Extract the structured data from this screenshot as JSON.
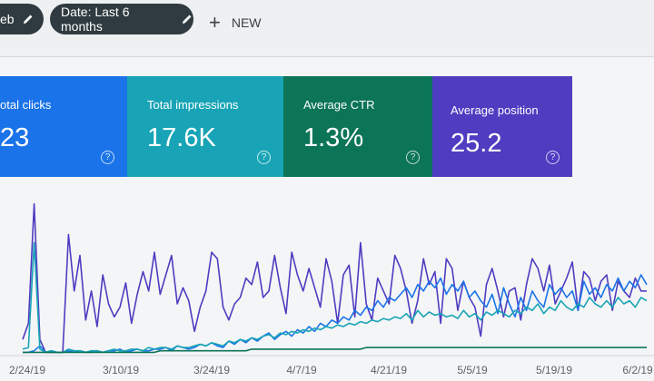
{
  "toolbar": {
    "search_type_chip": "eb",
    "date_chip": "Date: Last 6 months",
    "new_label": "NEW"
  },
  "metrics": [
    {
      "label": "otal clicks",
      "value": "23",
      "color": "#1a73e8"
    },
    {
      "label": "Total impressions",
      "value": "17.6K",
      "color": "#18a4b6"
    },
    {
      "label": "Average CTR",
      "value": "1.3%",
      "color": "#0c7457"
    },
    {
      "label": "Average position",
      "value": "25.2",
      "color": "#4e3cc1"
    }
  ],
  "chart_data": {
    "type": "line",
    "x_ticks": [
      "2/24/19",
      "3/10/19",
      "3/24/19",
      "4/7/19",
      "4/21/19",
      "5/5/19",
      "5/19/19",
      "6/2/19"
    ],
    "series": [
      {
        "color": "#4e3cc1",
        "values": [
          10,
          20,
          94,
          10,
          2,
          2,
          2,
          2,
          75,
          40,
          62,
          22,
          40,
          18,
          50,
          32,
          24,
          30,
          45,
          20,
          38,
          52,
          40,
          64,
          38,
          50,
          62,
          32,
          42,
          34,
          15,
          30,
          40,
          64,
          60,
          30,
          22,
          32,
          36,
          48,
          44,
          58,
          36,
          40,
          62,
          42,
          26,
          64,
          50,
          40,
          54,
          42,
          30,
          60,
          46,
          20,
          50,
          56,
          24,
          70,
          32,
          22,
          48,
          40,
          32,
          62,
          54,
          40,
          20,
          34,
          60,
          44,
          52,
          20,
          60,
          54,
          28,
          46,
          36,
          30,
          12,
          44,
          54,
          40,
          24,
          40,
          42,
          22,
          44,
          60,
          54,
          40,
          56,
          32,
          40,
          48,
          58,
          28,
          52,
          48,
          34,
          46,
          50,
          28,
          46,
          40,
          36,
          48,
          40,
          40
        ]
      },
      {
        "color": "#1a73e8",
        "values": [
          2,
          2,
          3,
          6,
          2,
          3,
          2,
          2,
          3,
          2,
          3,
          2,
          2,
          3,
          2,
          3,
          3,
          4,
          2,
          3,
          4,
          3,
          3,
          4,
          4,
          5,
          3,
          6,
          5,
          4,
          5,
          7,
          6,
          8,
          6,
          5,
          9,
          7,
          10,
          8,
          11,
          9,
          12,
          14,
          10,
          13,
          15,
          12,
          16,
          14,
          18,
          15,
          20,
          18,
          22,
          20,
          24,
          22,
          28,
          25,
          30,
          28,
          34,
          30,
          36,
          34,
          38,
          42,
          36,
          44,
          40,
          46,
          42,
          48,
          38,
          44,
          40,
          46,
          36,
          40,
          34,
          30,
          38,
          26,
          42,
          32,
          24,
          36,
          28,
          40,
          34,
          30,
          44,
          38,
          42,
          36,
          40,
          28,
          46,
          38,
          42,
          36,
          44,
          40,
          48,
          40,
          46,
          42,
          50,
          44
        ]
      },
      {
        "color": "#18a4b6",
        "values": [
          4,
          5,
          70,
          4,
          2,
          3,
          2,
          2,
          4,
          3,
          3,
          2,
          3,
          3,
          2,
          3,
          4,
          3,
          3,
          4,
          4,
          3,
          5,
          4,
          5,
          5,
          4,
          6,
          5,
          5,
          6,
          7,
          6,
          8,
          7,
          6,
          9,
          8,
          10,
          9,
          11,
          10,
          12,
          13,
          11,
          14,
          13,
          15,
          14,
          16,
          15,
          17,
          16,
          18,
          17,
          19,
          18,
          20,
          19,
          21,
          20,
          22,
          21,
          23,
          22,
          24,
          23,
          26,
          22,
          28,
          24,
          27,
          25,
          26,
          24,
          25,
          23,
          28,
          24,
          26,
          22,
          27,
          25,
          28,
          26,
          24,
          28,
          26,
          30,
          28,
          32,
          26,
          30,
          28,
          34,
          30,
          28,
          32,
          30,
          36,
          32,
          30,
          34,
          30,
          36,
          32,
          34,
          30,
          36,
          34
        ]
      },
      {
        "color": "#0c7457",
        "values": [
          2,
          2,
          2,
          2,
          2,
          2,
          2,
          2,
          2,
          2,
          2,
          2,
          2,
          2,
          2,
          2,
          2,
          2,
          2,
          2,
          2,
          2,
          2,
          2,
          3,
          3,
          3,
          3,
          3,
          3,
          3,
          3,
          3,
          3,
          3,
          3,
          3,
          3,
          3,
          3,
          4,
          4,
          4,
          4,
          4,
          4,
          4,
          4,
          4,
          4,
          4,
          4,
          4,
          4,
          4,
          4,
          4,
          4,
          4,
          4,
          5,
          5,
          5,
          5,
          5,
          5,
          5,
          5,
          5,
          5,
          5,
          5,
          5,
          5,
          5,
          5,
          5,
          5,
          5,
          5,
          5,
          5,
          5,
          5,
          5,
          5,
          5,
          5,
          5,
          5,
          5,
          5,
          5,
          5,
          5,
          5,
          5,
          5,
          5,
          5,
          5,
          5,
          5,
          5,
          5,
          5,
          5,
          5,
          5,
          5
        ]
      }
    ]
  }
}
